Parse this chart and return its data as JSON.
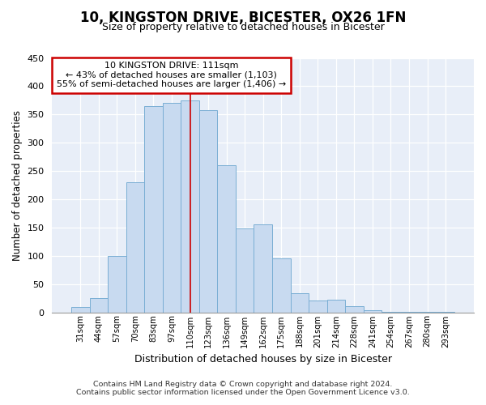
{
  "title": "10, KINGSTON DRIVE, BICESTER, OX26 1FN",
  "subtitle": "Size of property relative to detached houses in Bicester",
  "xlabel": "Distribution of detached houses by size in Bicester",
  "ylabel": "Number of detached properties",
  "bar_color": "#c8daf0",
  "bar_edge_color": "#7aaed4",
  "categories": [
    "31sqm",
    "44sqm",
    "57sqm",
    "70sqm",
    "83sqm",
    "97sqm",
    "110sqm",
    "123sqm",
    "136sqm",
    "149sqm",
    "162sqm",
    "175sqm",
    "188sqm",
    "201sqm",
    "214sqm",
    "228sqm",
    "241sqm",
    "254sqm",
    "267sqm",
    "280sqm",
    "293sqm"
  ],
  "values": [
    10,
    25,
    100,
    230,
    365,
    370,
    375,
    358,
    260,
    148,
    155,
    96,
    34,
    21,
    22,
    11,
    3,
    1,
    1,
    1,
    1
  ],
  "ylim": [
    0,
    450
  ],
  "yticks": [
    0,
    50,
    100,
    150,
    200,
    250,
    300,
    350,
    400,
    450
  ],
  "annotation_title": "10 KINGSTON DRIVE: 111sqm",
  "annotation_line1": "← 43% of detached houses are smaller (1,103)",
  "annotation_line2": "55% of semi-detached houses are larger (1,406) →",
  "annotation_box_color": "#ffffff",
  "annotation_box_edge": "#cc0000",
  "highlight_bar_index": 6,
  "highlight_line_color": "#cc0000",
  "footer_line1": "Contains HM Land Registry data © Crown copyright and database right 2024.",
  "footer_line2": "Contains public sector information licensed under the Open Government Licence v3.0.",
  "background_color": "#ffffff",
  "plot_background": "#e8eef8",
  "grid_color": "#ffffff",
  "title_fontsize": 12,
  "subtitle_fontsize": 9
}
